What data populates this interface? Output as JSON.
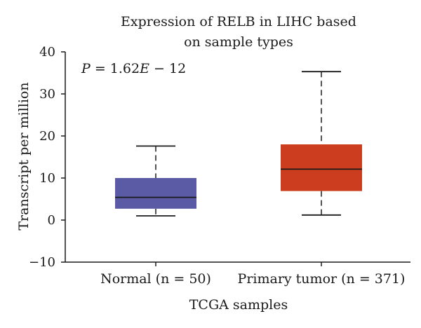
{
  "chart_data": {
    "type": "box",
    "title_lines": [
      "Expression of RELB in LIHC based",
      "on sample types"
    ],
    "xlabel": "TCGA samples",
    "ylabel": "Transcript per million",
    "ylim": [
      -10,
      40
    ],
    "yticks": [
      40,
      30,
      20,
      10,
      0,
      -10
    ],
    "ytick_labels": [
      "40",
      "30",
      "20",
      "10",
      "0",
      "−10"
    ],
    "annotation": {
      "p_symbol": "P",
      "p_text": " = 1.62",
      "e_symbol": "E",
      "e_text": " − 12"
    },
    "categories": [
      "Normal (n = 50)",
      "Primary tumor (n = 371)"
    ],
    "boxes": [
      {
        "category": "Normal (n = 50)",
        "whisker_low": 1.0,
        "q1": 2.7,
        "median": 5.4,
        "q3": 10.0,
        "whisker_high": 17.6,
        "color": "#5a5aa5"
      },
      {
        "category": "Primary tumor (n = 371)",
        "whisker_low": 1.2,
        "q1": 6.9,
        "median": 12.1,
        "q3": 18.0,
        "whisker_high": 35.3,
        "color": "#cc3c1e"
      }
    ],
    "grid": false,
    "legend": "none"
  }
}
